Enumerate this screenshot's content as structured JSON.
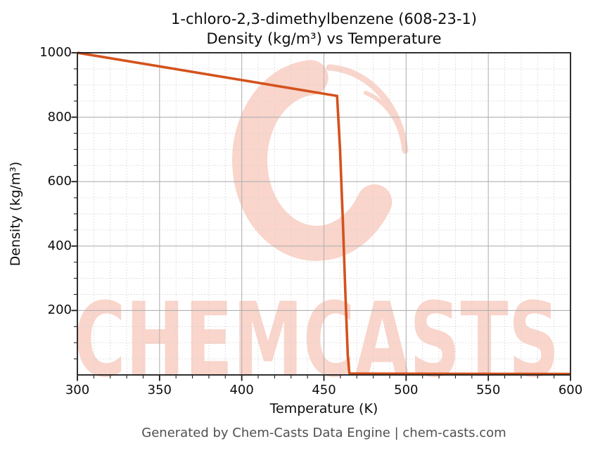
{
  "header": {
    "title_line1": "1-chloro-2,3-dimethylbenzene (608-23-1)",
    "title_line2": "Density (kg/m³) vs Temperature"
  },
  "axes": {
    "x_label": "Temperature (K)",
    "y_label": "Density (kg/m³)"
  },
  "footer": {
    "text": "Generated by Chem-Casts Data Engine | chem-casts.com"
  },
  "watermark": {
    "text": "CHEMCASTS",
    "color": "#f9d5cb"
  },
  "colors": {
    "line": "#d4521d",
    "grid_major": "#b2b2b2",
    "grid_minor": "#d4d4d4",
    "spine": "#1a1a1a",
    "footer_text": "#4f4f4f"
  },
  "chart_data": {
    "type": "line",
    "title": "1-chloro-2,3-dimethylbenzene (608-23-1) — Density (kg/m³) vs Temperature",
    "xlabel": "Temperature (K)",
    "ylabel": "Density (kg/m³)",
    "xlim": [
      300,
      600
    ],
    "ylim": [
      0,
      1000
    ],
    "x_major_ticks": [
      300,
      350,
      400,
      450,
      500,
      550,
      600
    ],
    "y_major_ticks": [
      200,
      400,
      600,
      800,
      1000
    ],
    "x_minor_step": 10,
    "y_minor_step": 50,
    "grid": "major solid, minor dashed",
    "legend": "none",
    "series": [
      {
        "name": "Density",
        "color": "#d4521d",
        "points": [
          [
            300,
            1000
          ],
          [
            458,
            866
          ],
          [
            459.8,
            700
          ],
          [
            461.5,
            480
          ],
          [
            463,
            260
          ],
          [
            464.5,
            60
          ],
          [
            465.5,
            4
          ],
          [
            600,
            3
          ]
        ]
      }
    ]
  }
}
